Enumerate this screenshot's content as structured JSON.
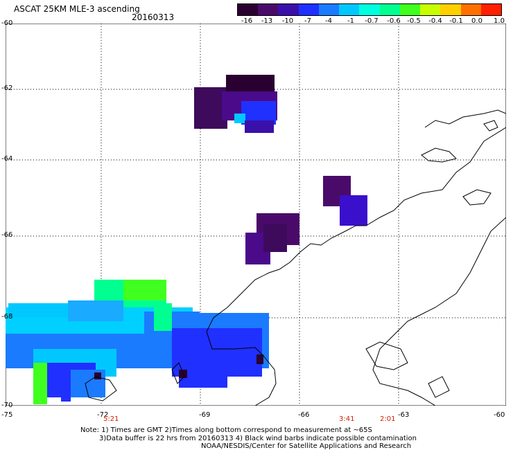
{
  "header": {
    "title": "ASCAT 25KM MLE-3 ascending",
    "date": "20160313"
  },
  "colorbar": {
    "labels": [
      "-16",
      "-13",
      "-10",
      "-7",
      "-4",
      "-1",
      "-0.7",
      "-0.6",
      "-0.5",
      "-0.4",
      "-0.1",
      "0.0",
      "1.0"
    ],
    "colors": [
      "#2a0030",
      "#4a0a6a",
      "#3a10aa",
      "#2030ff",
      "#1a7bff",
      "#00c8ff",
      "#00ffe0",
      "#00ff90",
      "#40ff20",
      "#c8ff00",
      "#ffd000",
      "#ff7000",
      "#ff2000"
    ]
  },
  "axes": {
    "lat_labels": [
      "-60",
      "-62",
      "-64",
      "-66",
      "-68",
      "-70"
    ],
    "lon_labels": [
      "-75",
      "-72",
      "-69",
      "-66",
      "-63",
      "-60"
    ]
  },
  "times": [
    "5:21",
    "3:41",
    "2:01"
  ],
  "notes": {
    "line1": "Note: 1) Times are GMT 2)Times along bottom correspond to measurement at ~65S",
    "line2": "3)Data buffer is 22 hrs from 20160313 4) Black wind barbs indicate possible contamination",
    "line3": "NOAA/NESDIS/Center for Satellite Applications and Research"
  }
}
